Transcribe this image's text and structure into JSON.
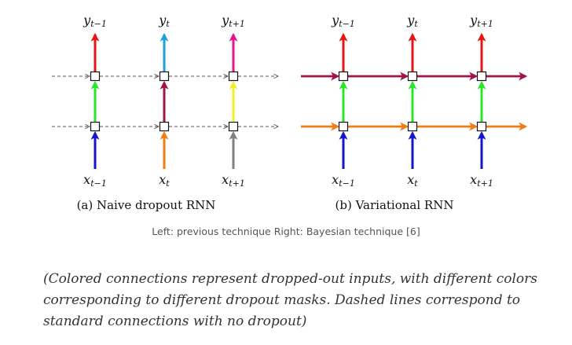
{
  "diagrams": [
    {
      "subtitle": "(a) Naive dropout RNN",
      "y_labels": [
        {
          "base": "y",
          "sub": "t−1"
        },
        {
          "base": "y",
          "sub": "t"
        },
        {
          "base": "y",
          "sub": "t+1"
        }
      ],
      "x_labels": [
        {
          "base": "x",
          "sub": "t−1"
        },
        {
          "base": "x",
          "sub": "t"
        },
        {
          "base": "x",
          "sub": "t+1"
        }
      ],
      "input_colors": [
        "#1414c8",
        "#f07d14",
        "#808080"
      ],
      "between_colors": [
        "#28e628",
        "#a0144b",
        "#f0f028"
      ],
      "output_colors": [
        "#e61414",
        "#1ea0dc",
        "#e6148c"
      ],
      "recurrent_style": "dashed"
    },
    {
      "subtitle": "(b) Variational RNN",
      "y_labels": [
        {
          "base": "y",
          "sub": "t−1"
        },
        {
          "base": "y",
          "sub": "t"
        },
        {
          "base": "y",
          "sub": "t+1"
        }
      ],
      "x_labels": [
        {
          "base": "x",
          "sub": "t−1"
        },
        {
          "base": "x",
          "sub": "t"
        },
        {
          "base": "x",
          "sub": "t+1"
        }
      ],
      "input_colors": [
        "#1414c8",
        "#1414c8",
        "#1414c8"
      ],
      "between_colors": [
        "#28e628",
        "#28e628",
        "#28e628"
      ],
      "output_colors": [
        "#e61414",
        "#e61414",
        "#e61414"
      ],
      "recurrent_colors": {
        "top": "#a0144b",
        "bottom": "#f07d14"
      },
      "recurrent_style": "solid"
    }
  ],
  "figure_caption": "Left: previous technique Right: Bayesian technique [6]",
  "note": "(Colored connections represent dropped-out inputs, with different colors corresponding to different dropout masks. Dashed lines correspond to standard connections with no dropout)"
}
